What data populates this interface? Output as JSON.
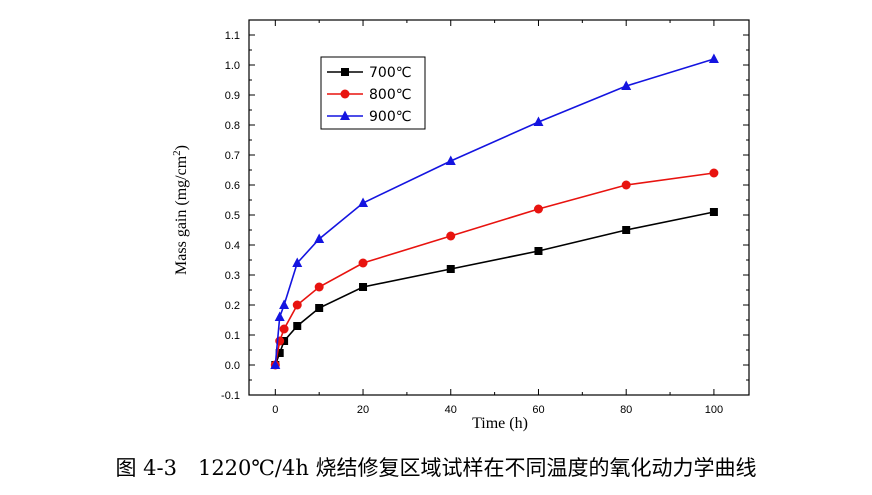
{
  "caption": "图 4-3　1220℃/4h 烧结修复区域试样在不同温度的氧化动力学曲线",
  "chart_data": {
    "type": "line",
    "xlabel": "Time (h)",
    "ylabel": "Mass gain (mg/cm",
    "ylabel_sup": "2",
    "ylabel_end": ")",
    "xlim": [
      -6,
      108
    ],
    "ylim": [
      -0.1,
      1.15
    ],
    "xticks": [
      0,
      20,
      40,
      60,
      80,
      100
    ],
    "xtick_labels": [
      "0",
      "20",
      "40",
      "60",
      "80",
      "100"
    ],
    "yticks": [
      -0.1,
      0.0,
      0.1,
      0.2,
      0.3,
      0.4,
      0.5,
      0.6,
      0.7,
      0.8,
      0.9,
      1.0,
      1.1
    ],
    "ytick_labels": [
      "-0.1",
      "0.0",
      "0.1",
      "0.2",
      "0.3",
      "0.4",
      "0.5",
      "0.6",
      "0.7",
      "0.8",
      "0.9",
      "1.0",
      "1.1"
    ],
    "grid": false,
    "legend_position": "top-left",
    "series": [
      {
        "name": "700℃",
        "color": "#000000",
        "marker": "square",
        "x": [
          0,
          1,
          2,
          5,
          10,
          20,
          40,
          60,
          80,
          100
        ],
        "y": [
          0.0,
          0.04,
          0.08,
          0.13,
          0.19,
          0.26,
          0.32,
          0.38,
          0.45,
          0.51
        ]
      },
      {
        "name": "800℃",
        "color": "#e8130f",
        "marker": "circle",
        "x": [
          0,
          1,
          2,
          5,
          10,
          20,
          40,
          60,
          80,
          100
        ],
        "y": [
          0.0,
          0.08,
          0.12,
          0.2,
          0.26,
          0.34,
          0.43,
          0.52,
          0.6,
          0.64
        ]
      },
      {
        "name": "900℃",
        "color": "#1414e0",
        "marker": "triangle",
        "x": [
          0,
          1,
          2,
          5,
          10,
          20,
          40,
          60,
          80,
          100
        ],
        "y": [
          0.0,
          0.16,
          0.2,
          0.34,
          0.42,
          0.54,
          0.68,
          0.81,
          0.93,
          1.02
        ]
      }
    ]
  }
}
